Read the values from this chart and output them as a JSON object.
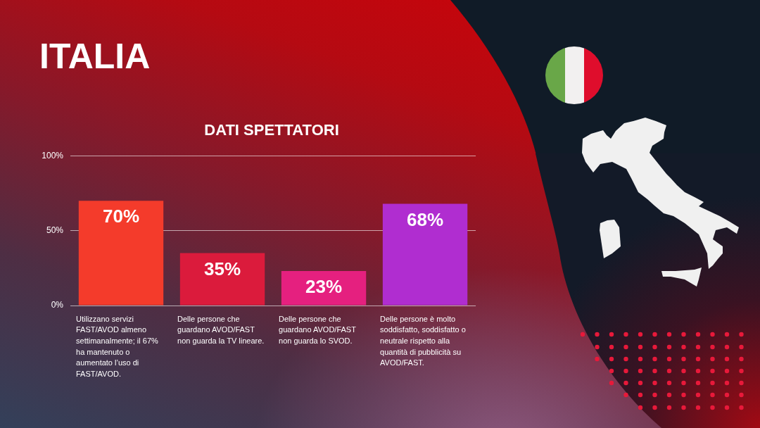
{
  "chart_data": {
    "type": "bar",
    "title": "ITALIA",
    "subtitle": "DATI SPETTATORI",
    "categories": [
      "Utilizzano servizi FAST/AVOD almeno settimanalmente; il 67% ha mantenuto o aumentato l’uso di FAST/AVOD.",
      "Delle persone che guardano AVOD/FAST non guarda la TV lineare.",
      "Delle persone che guardano AVOD/FAST non guarda lo SVOD.",
      "Delle persone è molto soddisfatto, soddisfatto o neutrale rispetto alla quantità di pubblicità su AVOD/FAST."
    ],
    "values": [
      70,
      35,
      23,
      68
    ],
    "colors": [
      "#f43b2b",
      "#db1b3c",
      "#e5207f",
      "#b02dd0"
    ],
    "value_labels": [
      "70%",
      "35%",
      "23%",
      "68%"
    ],
    "ylim": [
      0,
      100
    ],
    "yticks": [
      {
        "value": 0,
        "label": "0%"
      },
      {
        "value": 50,
        "label": "50%"
      },
      {
        "value": 100,
        "label": "100%"
      }
    ],
    "grid": "y"
  }
}
